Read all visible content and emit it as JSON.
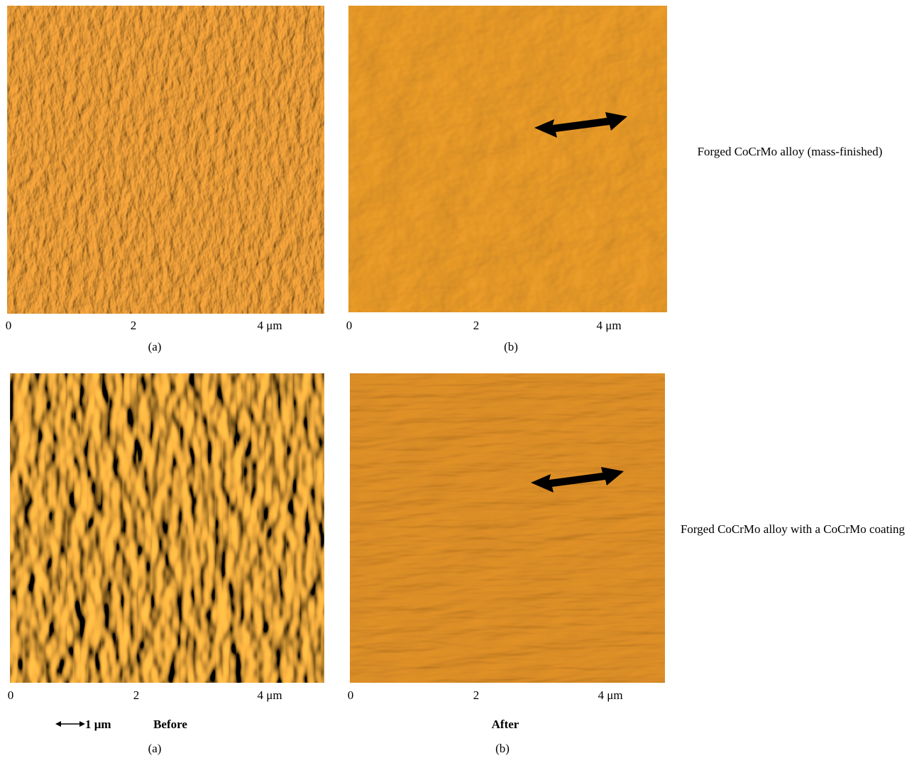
{
  "rows": [
    {
      "panels": [
        {
          "ticks": [
            "0",
            "2",
            "4 μm"
          ],
          "caption": "(a)"
        },
        {
          "ticks": [
            "0",
            "2",
            "4 μm"
          ],
          "caption": "(b)"
        }
      ],
      "label": "Forged CoCrMo alloy (mass-finished)"
    },
    {
      "panels": [
        {
          "ticks": [
            "0",
            "2",
            "4 μm"
          ],
          "caption": "(a)"
        },
        {
          "ticks": [
            "0",
            "2",
            "4 μm"
          ],
          "caption": "(b)"
        }
      ],
      "label": "Forged CoCrMo alloy with a CoCrMo coating"
    }
  ],
  "footer": {
    "scale": "1 μm",
    "before": "Before",
    "after": "After"
  }
}
